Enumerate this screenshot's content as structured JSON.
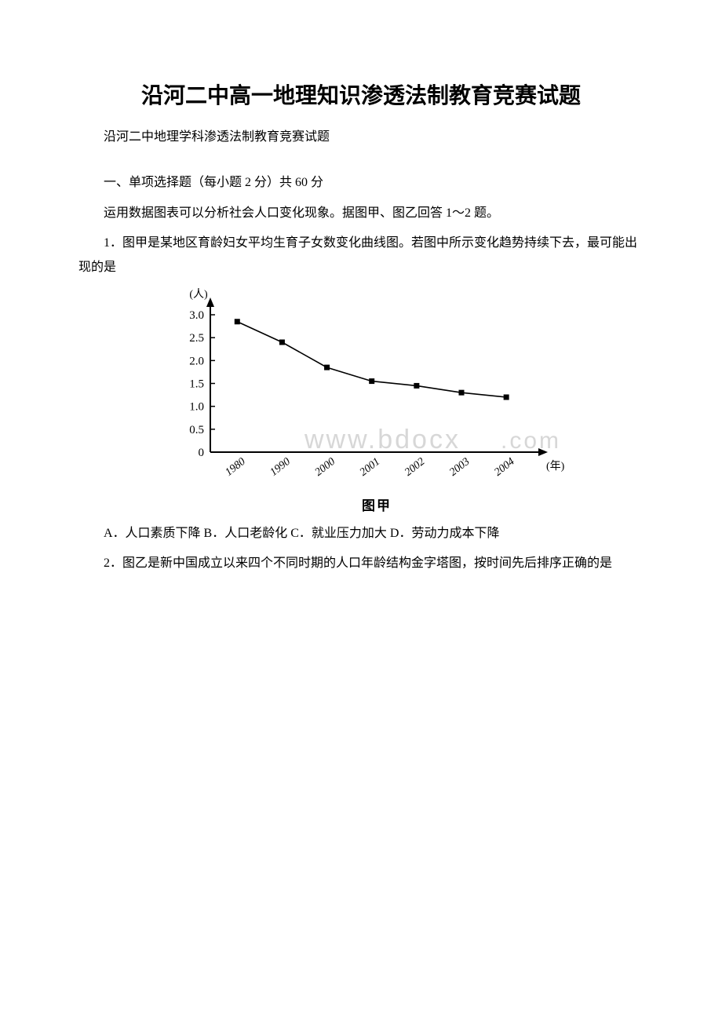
{
  "title": "沿河二中高一地理知识渗透法制教育竞赛试题",
  "subtitle": "沿河二中地理学科渗透法制教育竞赛试题",
  "section1": "一、单项选择题（每小题 2 分）共 60 分",
  "intro12": "运用数据图表可以分析社会人口变化现象。据图甲、图乙回答 1～2 题。",
  "q1": "1．图甲是某地区育龄妇女平均生育子女数变化曲线图。若图中所示变化趋势持续下去，最可能出现的是",
  "q1_options": "A．人口素质下降 B．人口老龄化 C．就业压力加大 D．劳动力成本下降",
  "q2": "2．图乙是新中国成立以来四个不同时期的人口年龄结构金字塔图，按时间先后排序正确的是",
  "chart": {
    "y_axis_label": "(人)",
    "x_axis_label": "(年)",
    "caption": "图甲",
    "y_ticks": [
      "0",
      "0.5",
      "1.0",
      "1.5",
      "2.0",
      "2.5",
      "3.0"
    ],
    "y_values": [
      0,
      0.5,
      1.0,
      1.5,
      2.0,
      2.5,
      3.0
    ],
    "ylim": [
      0,
      3.0
    ],
    "x_categories": [
      "1980",
      "1990",
      "2000",
      "2001",
      "2002",
      "2003",
      "2004"
    ],
    "data_values": [
      2.85,
      2.4,
      1.85,
      1.55,
      1.45,
      1.3,
      1.2
    ],
    "line_color": "#000000",
    "marker": "square",
    "marker_size": 7,
    "marker_color": "#000000",
    "axis_color": "#000000",
    "background_color": "#ffffff",
    "watermark_text": "www.bdocx",
    "watermark_suffix": ".com",
    "watermark_color": "#d7d7d7"
  }
}
